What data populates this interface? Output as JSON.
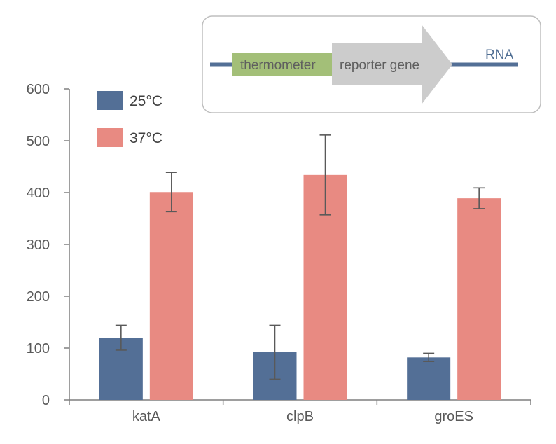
{
  "chart_data": {
    "type": "bar",
    "categories": [
      "katA",
      "clpB",
      "groES"
    ],
    "series": [
      {
        "name": "25°C",
        "color": "#536f96",
        "values": [
          120,
          92,
          82
        ],
        "errors": [
          24,
          52,
          8
        ]
      },
      {
        "name": "37°C",
        "color": "#e88a82",
        "values": [
          401,
          434,
          389
        ],
        "errors": [
          38,
          77,
          20
        ]
      }
    ],
    "ylim": [
      0,
      600
    ],
    "yticks": [
      0,
      100,
      200,
      300,
      400,
      500,
      600
    ],
    "xlabel": "",
    "ylabel": "",
    "title": "",
    "grid": false,
    "legend_position": "top-left",
    "inset": {
      "segment_thermometer": "thermometer",
      "segment_reporter": "reporter gene",
      "rna_label": "RNA",
      "thermometer_color": "#a3bf78",
      "reporter_color": "#cccccc",
      "rna_line_color": "#536f96"
    }
  }
}
